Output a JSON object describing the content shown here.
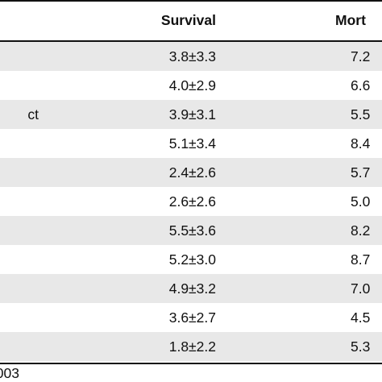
{
  "table": {
    "columns": {
      "survival": "Survival",
      "mortality": "Mort"
    },
    "rows": [
      {
        "label": "",
        "survival": "3.8±3.3",
        "mortality": "7.2"
      },
      {
        "label": "",
        "survival": "4.0±2.9",
        "mortality": "6.6"
      },
      {
        "label": "ct",
        "survival": "3.9±3.1",
        "mortality": "5.5"
      },
      {
        "label": "",
        "survival": "5.1±3.4",
        "mortality": "8.4"
      },
      {
        "label": "",
        "survival": "2.4±2.6",
        "mortality": "5.7"
      },
      {
        "label": "",
        "survival": "2.6±2.6",
        "mortality": "5.0"
      },
      {
        "label": "",
        "survival": "5.5±3.6",
        "mortality": "8.2"
      },
      {
        "label": "",
        "survival": "5.2±3.0",
        "mortality": "8.7"
      },
      {
        "label": "",
        "survival": "4.9±3.2",
        "mortality": "7.0"
      },
      {
        "label": "",
        "survival": "3.6±2.7",
        "mortality": "4.5"
      },
      {
        "label": "",
        "survival": "1.8±2.2",
        "mortality": "5.3"
      }
    ],
    "footnote": "003"
  }
}
